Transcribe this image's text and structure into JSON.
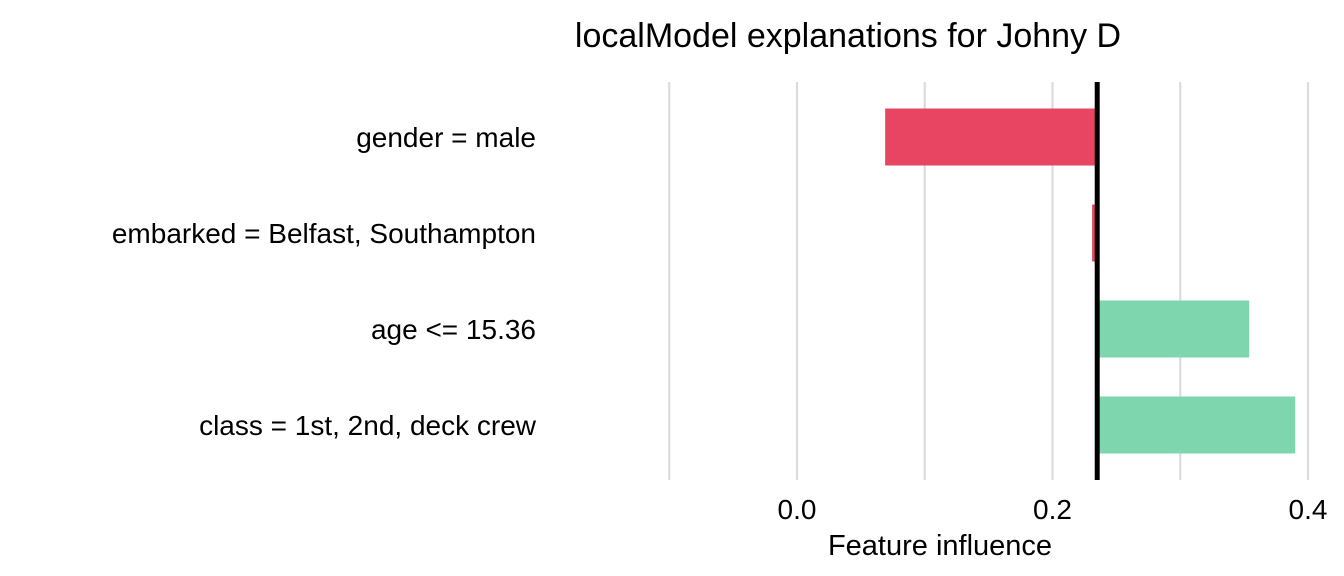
{
  "chart_data": {
    "type": "bar",
    "orientation": "horizontal",
    "title": "localModel explanations for Johny D",
    "xlabel": "Feature influence",
    "ylabel": "",
    "xlim": [
      -0.1,
      0.4
    ],
    "xticks": [
      0.0,
      0.2,
      0.4
    ],
    "xtick_labels": [
      "0.0",
      "0.2",
      "0.4"
    ],
    "grid": true,
    "legend": "none",
    "baseline": 0.235,
    "categories": [
      "gender = male",
      "embarked = Belfast, Southampton",
      "age <= 15.36",
      "class = 1st, 2nd, deck crew"
    ],
    "values": [
      -0.166,
      -0.004,
      0.119,
      0.155
    ],
    "colors": {
      "negative": "#e84563",
      "positive": "#7dd6ae",
      "baseline": "#000000",
      "grid": "#dcdcdc"
    }
  }
}
